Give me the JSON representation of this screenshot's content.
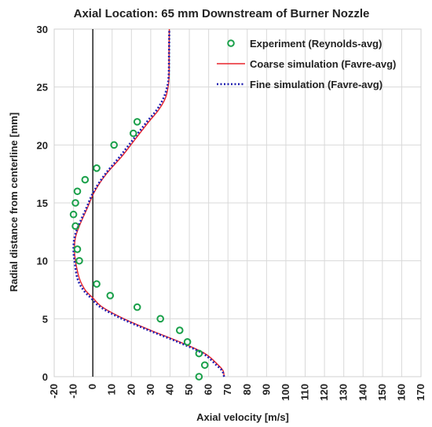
{
  "chart_data": {
    "type": "line",
    "title": "Axial Location: 65 mm Downstream of Burner Nozzle",
    "xlabel": "Axial velocity [m/s]",
    "ylabel": "Radial distance from centerline [mm]",
    "xlim": [
      -20,
      170
    ],
    "ylim": [
      0,
      30
    ],
    "xticks": [
      -20,
      -10,
      0,
      10,
      20,
      30,
      40,
      50,
      60,
      70,
      80,
      90,
      100,
      110,
      120,
      130,
      140,
      150,
      160,
      170
    ],
    "yticks": [
      0,
      5,
      10,
      15,
      20,
      25,
      30
    ],
    "grid": true,
    "legend_position": "top-right",
    "reference_line_x": 0,
    "series": [
      {
        "name": "Experiment (Reynolds-avg)",
        "kind": "scatter",
        "color": "#1aa04a",
        "x": [
          55,
          58,
          55,
          49,
          45,
          35,
          23,
          9,
          2,
          -7,
          -8,
          -9,
          -10,
          -9,
          -8,
          -4,
          2,
          11,
          21,
          23
        ],
        "y": [
          0,
          1,
          2,
          3,
          4,
          5,
          6,
          7,
          8,
          10,
          11,
          13,
          14,
          15,
          16,
          17,
          18,
          20,
          21,
          22
        ]
      },
      {
        "name": "Coarse simulation (Favre-avg)",
        "kind": "line",
        "color": "#e8242c",
        "x": [
          68,
          67.5,
          65,
          58,
          45,
          30,
          16,
          5,
          0,
          -4,
          -7,
          -9,
          -9.5,
          -9,
          -7,
          -3,
          1,
          7,
          15,
          22,
          29,
          34,
          37.5,
          39,
          39.5,
          39.5,
          39.6
        ],
        "y": [
          0,
          0.5,
          1,
          2,
          3,
          4,
          5,
          6,
          6.8,
          7.5,
          8.5,
          10,
          11,
          12,
          13,
          14.5,
          16,
          17.5,
          19,
          20.5,
          22,
          23,
          24,
          25,
          26,
          28,
          30
        ]
      },
      {
        "name": "Fine simulation (Favre-avg)",
        "kind": "line",
        "color": "#1f1fb0",
        "x": [
          68,
          67,
          64,
          57,
          44,
          29,
          15,
          4,
          -1,
          -5,
          -8,
          -9.5,
          -10,
          -9.5,
          -7.5,
          -3.5,
          0.5,
          6.5,
          14,
          21,
          28,
          33,
          36.5,
          38.5,
          39.3,
          39.5,
          39.6
        ],
        "y": [
          0,
          0.5,
          1,
          2,
          3,
          4,
          5,
          6,
          6.8,
          7.5,
          8.5,
          10,
          11,
          12,
          13,
          14.5,
          16,
          17.5,
          19,
          20.5,
          22,
          23,
          24,
          25,
          26,
          28,
          30
        ]
      }
    ]
  }
}
